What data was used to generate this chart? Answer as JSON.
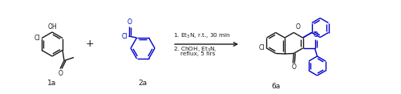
{
  "bg_color": "#ffffff",
  "line_color": "#1a1a1a",
  "blue_color": "#0000cc",
  "label_1a": "1a",
  "label_2a": "2a",
  "label_6a": "6a",
  "reaction_step1": "1. Et$_3$N, r.t., 30 min",
  "reaction_step2": "2. ChOH, Et$_3$N,",
  "reaction_step3": "    reflux, 5 hrs",
  "figsize": [
    5.0,
    1.17
  ],
  "dpi": 100
}
